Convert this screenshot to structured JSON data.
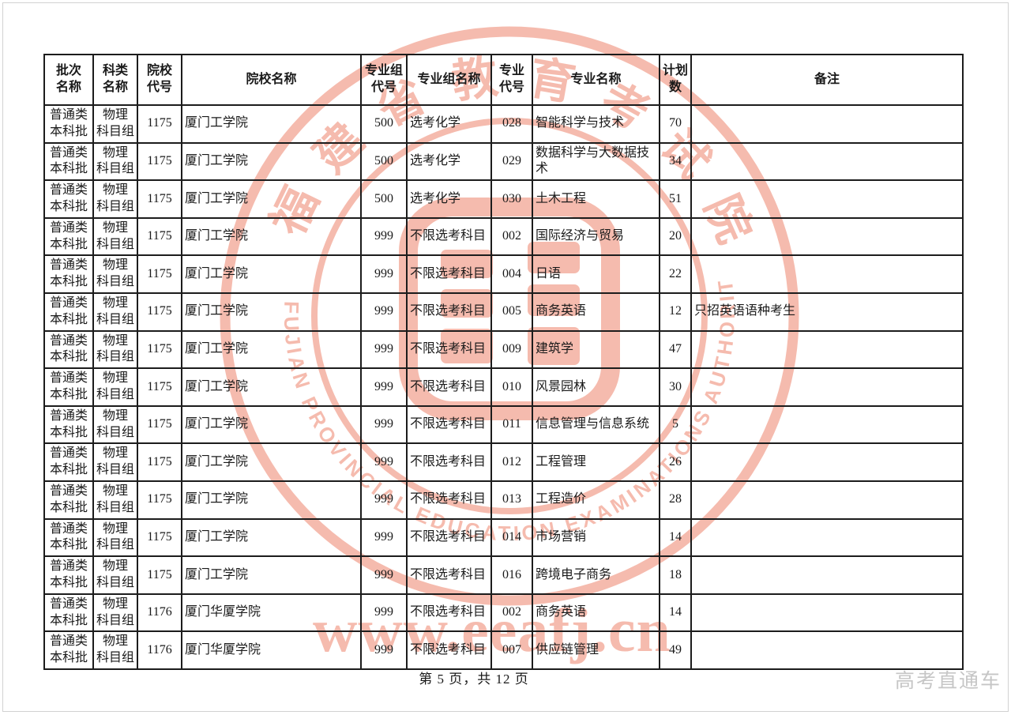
{
  "watermark": {
    "seal_chars": [
      "福",
      "建",
      "省",
      "教",
      "育",
      "考",
      "试",
      "院"
    ],
    "seal_english": "FUJIAN PROVINCIAL EDUCATION EXAMINATIONS AUTHORITY",
    "url_text": "www.eeafj.cn",
    "color": "#f0937e"
  },
  "table": {
    "columns": [
      {
        "key": "batch",
        "label": "批次\n名称",
        "align": "c"
      },
      {
        "key": "subject",
        "label": "科类\n名称",
        "align": "c"
      },
      {
        "key": "school_code",
        "label": "院校\n代号",
        "align": "c"
      },
      {
        "key": "school_name",
        "label": "院校名称",
        "align": "l"
      },
      {
        "key": "group_code",
        "label": "专业组\n代号",
        "align": "c"
      },
      {
        "key": "group_name",
        "label": "专业组名称",
        "align": "l"
      },
      {
        "key": "major_code",
        "label": "专业\n代号",
        "align": "c"
      },
      {
        "key": "major_name",
        "label": "专业名称",
        "align": "l"
      },
      {
        "key": "plan_count",
        "label": "计划\n数",
        "align": "c"
      },
      {
        "key": "remark",
        "label": "备注",
        "align": "l"
      }
    ],
    "rows": [
      [
        "普通类\n本科批",
        "物理\n科目组",
        "1175",
        "厦门工学院",
        "500",
        "选考化学",
        "028",
        "智能科学与技术",
        "70",
        ""
      ],
      [
        "普通类\n本科批",
        "物理\n科目组",
        "1175",
        "厦门工学院",
        "500",
        "选考化学",
        "029",
        "数据科学与大数据技术",
        "34",
        ""
      ],
      [
        "普通类\n本科批",
        "物理\n科目组",
        "1175",
        "厦门工学院",
        "500",
        "选考化学",
        "030",
        "土木工程",
        "51",
        ""
      ],
      [
        "普通类\n本科批",
        "物理\n科目组",
        "1175",
        "厦门工学院",
        "999",
        "不限选考科目",
        "002",
        "国际经济与贸易",
        "20",
        ""
      ],
      [
        "普通类\n本科批",
        "物理\n科目组",
        "1175",
        "厦门工学院",
        "999",
        "不限选考科目",
        "004",
        "日语",
        "22",
        ""
      ],
      [
        "普通类\n本科批",
        "物理\n科目组",
        "1175",
        "厦门工学院",
        "999",
        "不限选考科目",
        "005",
        "商务英语",
        "12",
        "只招英语语种考生"
      ],
      [
        "普通类\n本科批",
        "物理\n科目组",
        "1175",
        "厦门工学院",
        "999",
        "不限选考科目",
        "009",
        "建筑学",
        "47",
        ""
      ],
      [
        "普通类\n本科批",
        "物理\n科目组",
        "1175",
        "厦门工学院",
        "999",
        "不限选考科目",
        "010",
        "风景园林",
        "30",
        ""
      ],
      [
        "普通类\n本科批",
        "物理\n科目组",
        "1175",
        "厦门工学院",
        "999",
        "不限选考科目",
        "011",
        "信息管理与信息系统",
        "5",
        ""
      ],
      [
        "普通类\n本科批",
        "物理\n科目组",
        "1175",
        "厦门工学院",
        "999",
        "不限选考科目",
        "012",
        "工程管理",
        "26",
        ""
      ],
      [
        "普通类\n本科批",
        "物理\n科目组",
        "1175",
        "厦门工学院",
        "999",
        "不限选考科目",
        "013",
        "工程造价",
        "28",
        ""
      ],
      [
        "普通类\n本科批",
        "物理\n科目组",
        "1175",
        "厦门工学院",
        "999",
        "不限选考科目",
        "014",
        "市场营销",
        "14",
        ""
      ],
      [
        "普通类\n本科批",
        "物理\n科目组",
        "1175",
        "厦门工学院",
        "999",
        "不限选考科目",
        "016",
        "跨境电子商务",
        "18",
        ""
      ],
      [
        "普通类\n本科批",
        "物理\n科目组",
        "1176",
        "厦门华厦学院",
        "999",
        "不限选考科目",
        "002",
        "商务英语",
        "14",
        ""
      ],
      [
        "普通类\n本科批",
        "物理\n科目组",
        "1176",
        "厦门华厦学院",
        "999",
        "不限选考科目",
        "007",
        "供应链管理",
        "49",
        ""
      ]
    ]
  },
  "footer": {
    "page_info": "第 5 页，共 12 页",
    "brand": "高考直通车"
  }
}
